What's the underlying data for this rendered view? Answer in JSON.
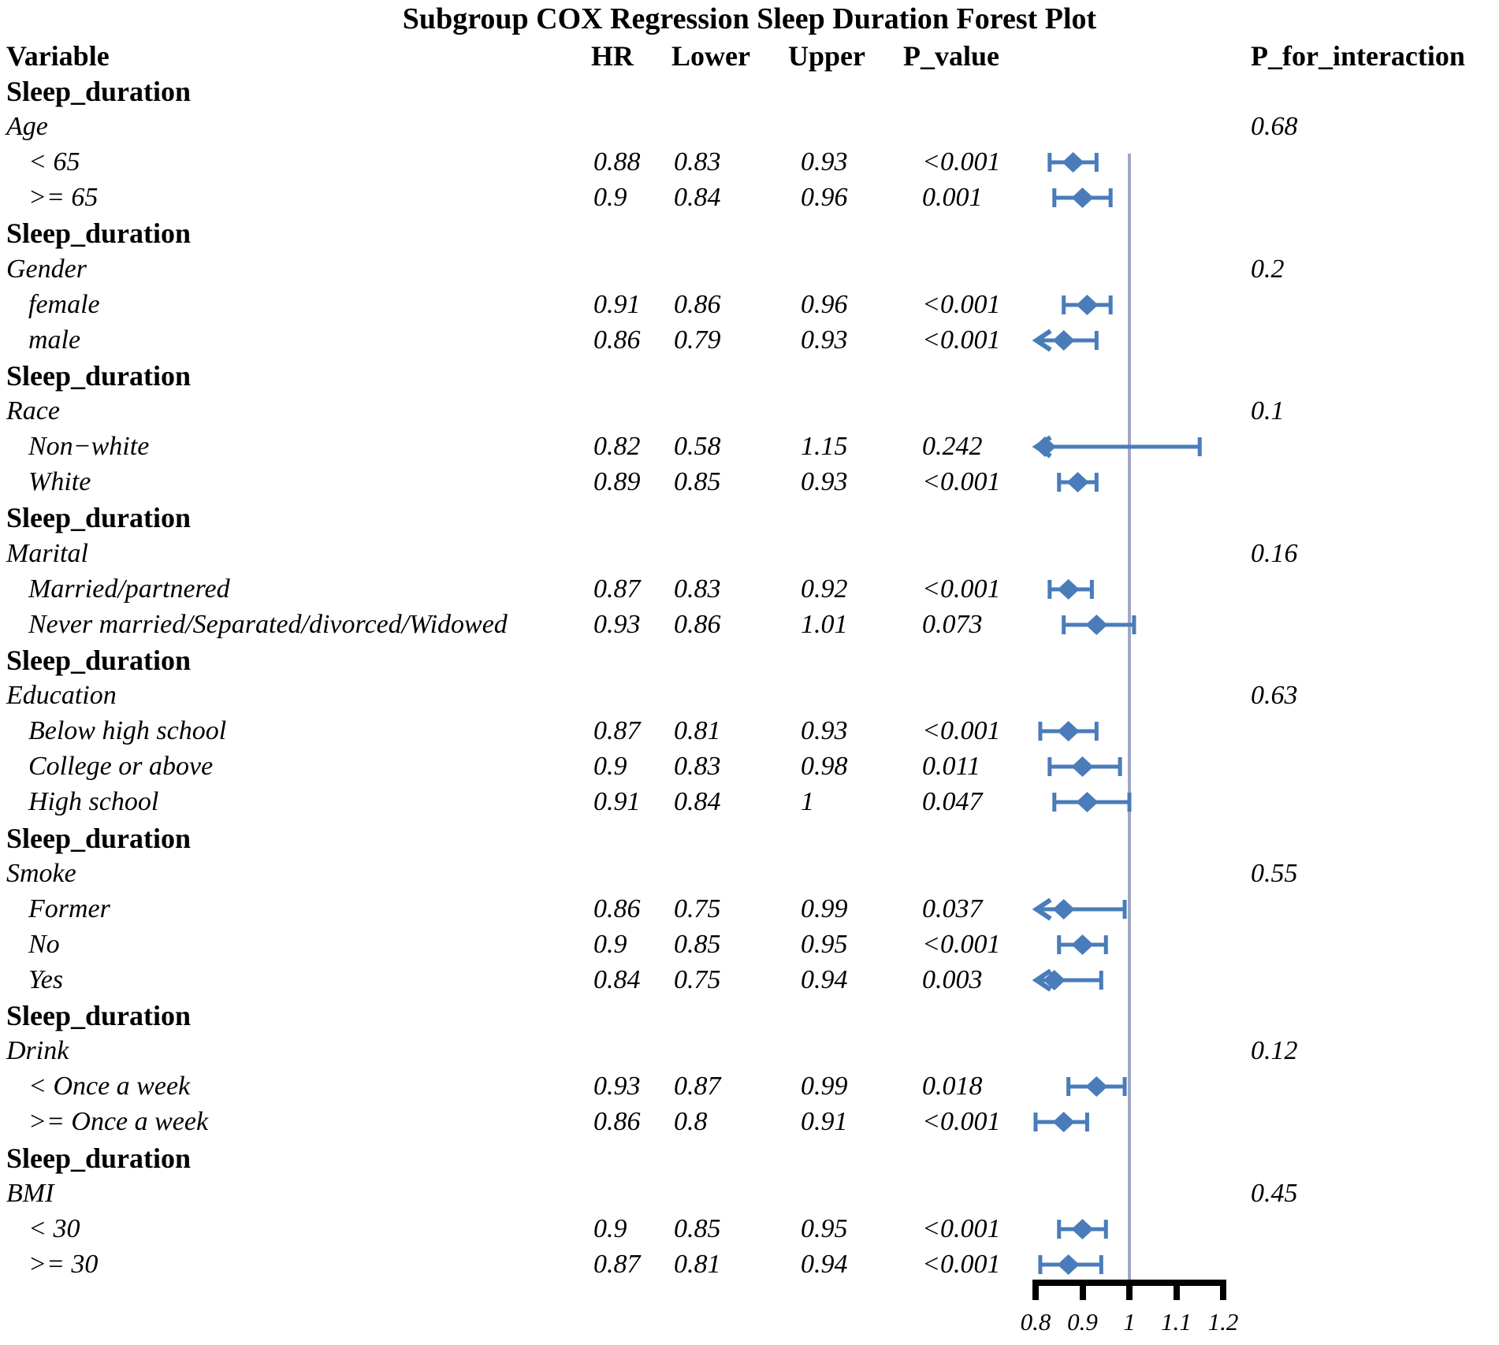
{
  "title": "Subgroup COX Regression Sleep Duration Forest Plot",
  "columns": {
    "variable": "Variable",
    "hr": "HR",
    "lower": "Lower",
    "upper": "Upper",
    "p_value": "P_value",
    "p_for_interaction": "P_for_interaction"
  },
  "axis": {
    "tick_labels": [
      "0.8",
      "0.9",
      "1",
      "1.1",
      "1.2"
    ],
    "tick_values": [
      0.8,
      0.9,
      1.0,
      1.1,
      1.2
    ],
    "min": 0.8,
    "max": 1.2,
    "reference": 1.0
  },
  "colors": {
    "marker_blue": "#4a7cba",
    "reference_line": "#a0a8c4",
    "axis_black": "#000000",
    "text": "#000000"
  },
  "chart_data": {
    "type": "scatter",
    "variant": "forest-plot-with-error-bars",
    "title": "Subgroup COX Regression Sleep Duration Forest Plot",
    "x_axis": {
      "range": [
        0.8,
        1.2
      ],
      "ticks": [
        0.8,
        0.9,
        1.0,
        1.1,
        1.2
      ],
      "reference_line": 1.0
    },
    "legend_position": "none",
    "grid": false,
    "groups": [
      {
        "group": "Sleep_duration",
        "category": "Age",
        "p_for_interaction": "0.68",
        "items": [
          {
            "label": "< 65",
            "hr": "0.88",
            "lower": "0.83",
            "upper": "0.93",
            "p_value": "<0.001"
          },
          {
            "label": ">= 65",
            "hr": "0.9",
            "lower": "0.84",
            "upper": "0.96",
            "p_value": "0.001"
          }
        ]
      },
      {
        "group": "Sleep_duration",
        "category": "Gender",
        "p_for_interaction": "0.2",
        "items": [
          {
            "label": "female",
            "hr": "0.91",
            "lower": "0.86",
            "upper": "0.96",
            "p_value": "<0.001"
          },
          {
            "label": "male",
            "hr": "0.86",
            "lower": "0.79",
            "upper": "0.93",
            "p_value": "<0.001"
          }
        ]
      },
      {
        "group": "Sleep_duration",
        "category": "Race",
        "p_for_interaction": "0.1",
        "items": [
          {
            "label": "Non−white",
            "hr": "0.82",
            "lower": "0.58",
            "upper": "1.15",
            "p_value": "0.242"
          },
          {
            "label": "White",
            "hr": "0.89",
            "lower": "0.85",
            "upper": "0.93",
            "p_value": "<0.001"
          }
        ]
      },
      {
        "group": "Sleep_duration",
        "category": "Marital",
        "p_for_interaction": "0.16",
        "items": [
          {
            "label": "Married/partnered",
            "hr": "0.87",
            "lower": "0.83",
            "upper": "0.92",
            "p_value": "<0.001"
          },
          {
            "label": "Never married/Separated/divorced/Widowed",
            "hr": "0.93",
            "lower": "0.86",
            "upper": "1.01",
            "p_value": "0.073"
          }
        ]
      },
      {
        "group": "Sleep_duration",
        "category": "Education",
        "p_for_interaction": "0.63",
        "items": [
          {
            "label": "Below high school",
            "hr": "0.87",
            "lower": "0.81",
            "upper": "0.93",
            "p_value": "<0.001"
          },
          {
            "label": "College or above",
            "hr": "0.9",
            "lower": "0.83",
            "upper": "0.98",
            "p_value": "0.011"
          },
          {
            "label": "High school",
            "hr": "0.91",
            "lower": "0.84",
            "upper": "1",
            "p_value": "0.047"
          }
        ]
      },
      {
        "group": "Sleep_duration",
        "category": "Smoke",
        "p_for_interaction": "0.55",
        "items": [
          {
            "label": "Former",
            "hr": "0.86",
            "lower": "0.75",
            "upper": "0.99",
            "p_value": "0.037"
          },
          {
            "label": "No",
            "hr": "0.9",
            "lower": "0.85",
            "upper": "0.95",
            "p_value": "<0.001"
          },
          {
            "label": "Yes",
            "hr": "0.84",
            "lower": "0.75",
            "upper": "0.94",
            "p_value": "0.003"
          }
        ]
      },
      {
        "group": "Sleep_duration",
        "category": "Drink",
        "p_for_interaction": "0.12",
        "items": [
          {
            "label": "< Once a week",
            "hr": "0.93",
            "lower": "0.87",
            "upper": "0.99",
            "p_value": "0.018"
          },
          {
            "label": ">= Once a week",
            "hr": "0.86",
            "lower": "0.8",
            "upper": "0.91",
            "p_value": "<0.001"
          }
        ]
      },
      {
        "group": "Sleep_duration",
        "category": "BMI",
        "p_for_interaction": "0.45",
        "items": [
          {
            "label": "< 30",
            "hr": "0.9",
            "lower": "0.85",
            "upper": "0.95",
            "p_value": "<0.001"
          },
          {
            "label": ">= 30",
            "hr": "0.87",
            "lower": "0.81",
            "upper": "0.94",
            "p_value": "<0.001"
          }
        ]
      }
    ]
  }
}
